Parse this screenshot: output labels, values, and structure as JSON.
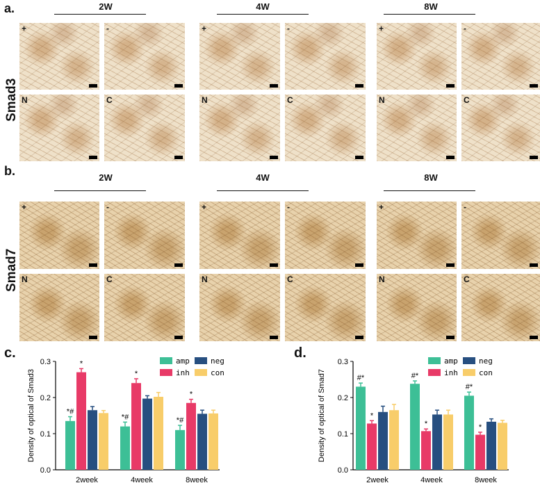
{
  "panel_labels": {
    "a": "a.",
    "b": "b.",
    "c": "c.",
    "d": "d."
  },
  "row_labels": {
    "a": "Smad3",
    "b": "Smad7"
  },
  "weeks": [
    "2W",
    "4W",
    "8W"
  ],
  "tile_labels": [
    "+",
    "-",
    "N",
    "C"
  ],
  "colors": {
    "amp": "#3dbf96",
    "neg": "#274f80",
    "inh": "#e83a67",
    "con": "#f8cd6a"
  },
  "chart_data": [
    {
      "type": "bar",
      "ylabel": "Density of optical of Smad3",
      "xlabel": "",
      "categories": [
        "2week",
        "4week",
        "8week"
      ],
      "ylim": [
        0,
        0.3
      ],
      "yticks": [
        "0.0",
        "0.1",
        "0.2",
        "0.3"
      ],
      "legend": [
        "amp",
        "neg",
        "inh",
        "con"
      ],
      "series": [
        {
          "name": "amp",
          "values": [
            0.135,
            0.12,
            0.11
          ],
          "errors": [
            0.012,
            0.012,
            0.013
          ]
        },
        {
          "name": "inh",
          "values": [
            0.27,
            0.24,
            0.185
          ],
          "errors": [
            0.01,
            0.012,
            0.01
          ]
        },
        {
          "name": "neg",
          "values": [
            0.165,
            0.197,
            0.155
          ],
          "errors": [
            0.01,
            0.008,
            0.01
          ]
        },
        {
          "name": "con",
          "values": [
            0.157,
            0.202,
            0.156
          ],
          "errors": [
            0.007,
            0.012,
            0.009
          ]
        }
      ],
      "annotations": [
        {
          "series": "amp",
          "cat": 0,
          "text": "*#"
        },
        {
          "series": "inh",
          "cat": 0,
          "text": "*"
        },
        {
          "series": "amp",
          "cat": 1,
          "text": "*#"
        },
        {
          "series": "inh",
          "cat": 1,
          "text": "*"
        },
        {
          "series": "amp",
          "cat": 2,
          "text": "*#"
        },
        {
          "series": "inh",
          "cat": 2,
          "text": "*"
        }
      ]
    },
    {
      "type": "bar",
      "ylabel": "Density of optical of Smad7",
      "xlabel": "",
      "categories": [
        "2week",
        "4week",
        "8week"
      ],
      "ylim": [
        0,
        0.3
      ],
      "yticks": [
        "0.0",
        "0.1",
        "0.2",
        "0.3"
      ],
      "legend": [
        "amp",
        "neg",
        "inh",
        "con"
      ],
      "series": [
        {
          "name": "amp",
          "values": [
            0.23,
            0.238,
            0.205
          ],
          "errors": [
            0.01,
            0.008,
            0.01
          ]
        },
        {
          "name": "inh",
          "values": [
            0.128,
            0.107,
            0.097
          ],
          "errors": [
            0.008,
            0.006,
            0.007
          ]
        },
        {
          "name": "neg",
          "values": [
            0.16,
            0.153,
            0.133
          ],
          "errors": [
            0.016,
            0.012,
            0.008
          ]
        },
        {
          "name": "con",
          "values": [
            0.165,
            0.153,
            0.13
          ],
          "errors": [
            0.016,
            0.012,
            0.007
          ]
        }
      ],
      "annotations": [
        {
          "series": "amp",
          "cat": 0,
          "text": "#*"
        },
        {
          "series": "inh",
          "cat": 0,
          "text": "*"
        },
        {
          "series": "amp",
          "cat": 1,
          "text": "#*"
        },
        {
          "series": "inh",
          "cat": 1,
          "text": "*"
        },
        {
          "series": "amp",
          "cat": 2,
          "text": "#*"
        },
        {
          "series": "inh",
          "cat": 2,
          "text": "*"
        }
      ]
    }
  ]
}
